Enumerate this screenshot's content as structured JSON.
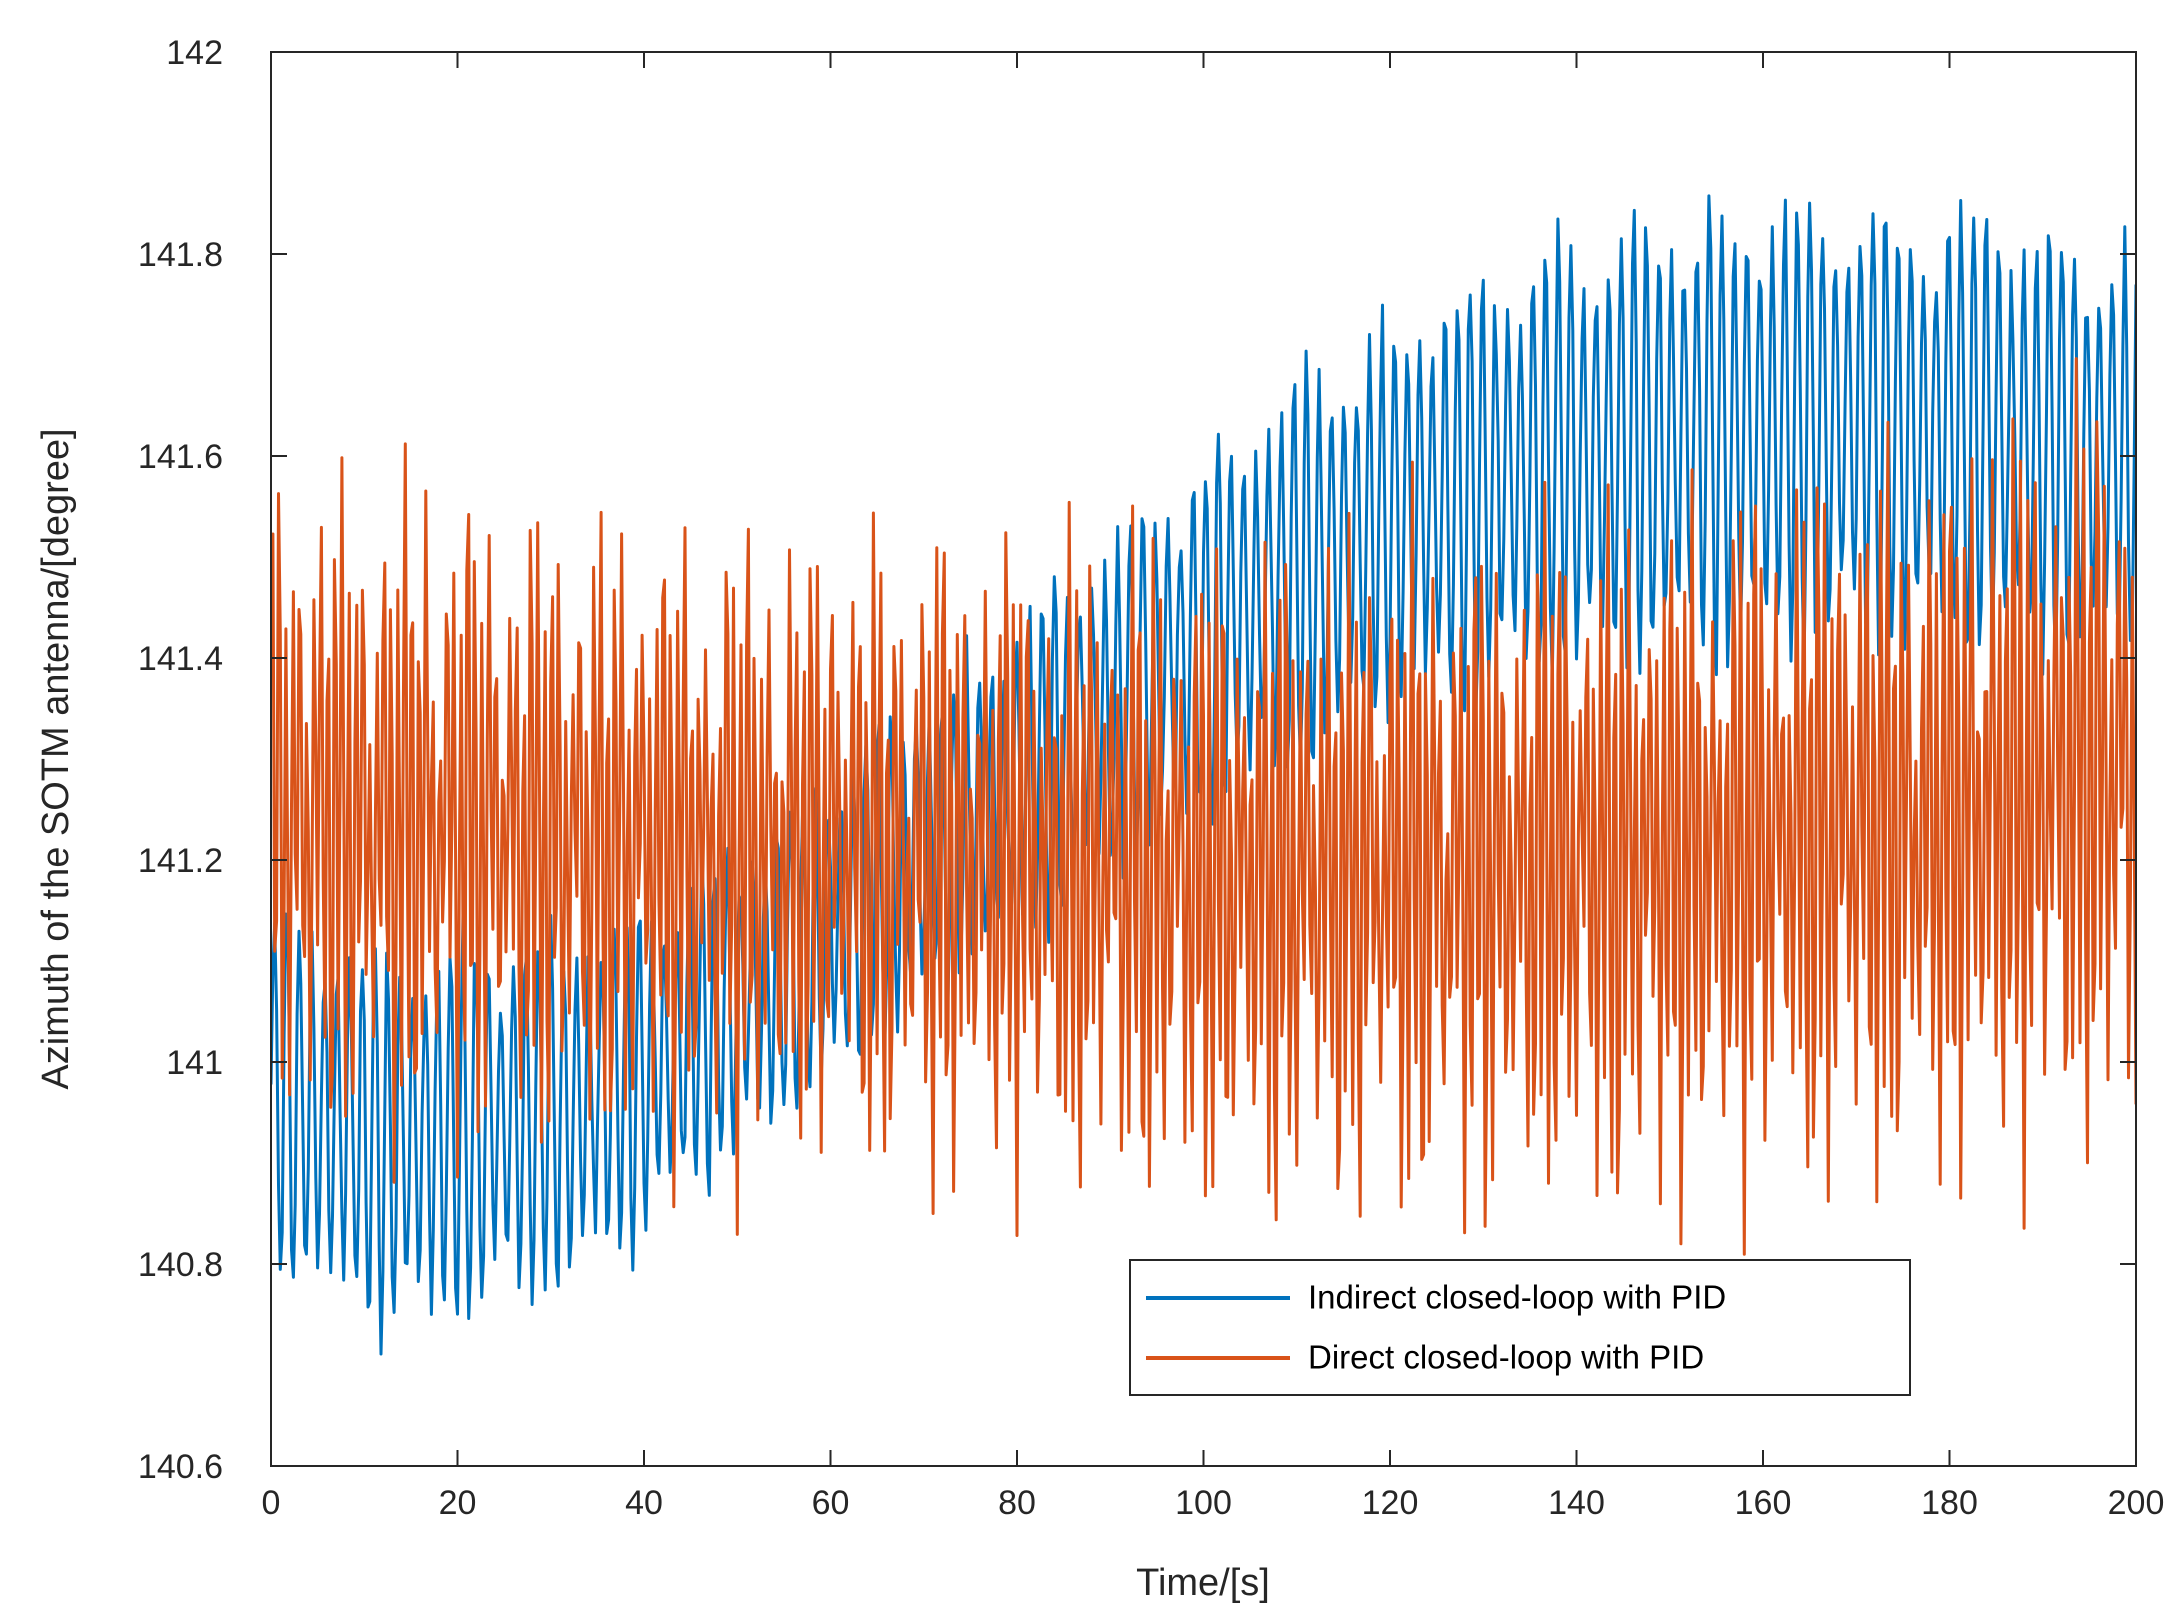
{
  "chart_data": {
    "type": "line",
    "title": "",
    "xlabel": "Time/[s]",
    "ylabel": "Azimuth of the SOTM antenna/[degree]",
    "xlim": [
      0,
      200
    ],
    "ylim": [
      140.6,
      142
    ],
    "xticks": [
      0,
      20,
      40,
      60,
      80,
      100,
      120,
      140,
      160,
      180,
      200
    ],
    "yticks": [
      140.6,
      140.8,
      141,
      141.2,
      141.4,
      141.6,
      141.8,
      142
    ],
    "xtick_labels": [
      "0",
      "20",
      "40",
      "60",
      "80",
      "100",
      "120",
      "140",
      "160",
      "180",
      "200"
    ],
    "ytick_labels": [
      "140.6",
      "140.8",
      "141",
      "141.2",
      "141.4",
      "141.6",
      "141.8",
      "142"
    ],
    "grid": false,
    "legend_position": "bottom-right",
    "sample_step": 0.2,
    "series": [
      {
        "name": "Indirect closed-loop with PID",
        "color": "#0072BD",
        "trend": {
          "t": [
            0,
            5,
            10,
            15,
            20,
            30,
            40,
            50,
            60,
            70,
            80,
            90,
            100,
            110,
            120,
            130,
            140,
            150,
            160,
            170,
            180,
            190,
            200
          ],
          "v": [
            140.97,
            140.95,
            140.93,
            140.925,
            140.93,
            140.95,
            140.99,
            141.06,
            141.13,
            141.21,
            141.28,
            141.35,
            141.42,
            141.48,
            141.53,
            141.57,
            141.6,
            141.62,
            141.63,
            141.63,
            141.625,
            141.61,
            141.6
          ]
        },
        "amplitude": {
          "t": [
            0,
            20,
            50,
            80,
            110,
            150,
            200
          ],
          "v": [
            0.19,
            0.2,
            0.16,
            0.16,
            0.2,
            0.24,
            0.22
          ]
        },
        "period": 1.35
      },
      {
        "name": "Direct closed-loop with PID",
        "color": "#D95319",
        "trend": {
          "t": [
            0,
            20,
            40,
            60,
            80,
            100,
            120,
            140,
            160,
            180,
            200
          ],
          "v": [
            141.25,
            141.24,
            141.22,
            141.21,
            141.2,
            141.19,
            141.19,
            141.2,
            141.22,
            141.25,
            141.3
          ]
        },
        "amplitude": {
          "t": [
            0,
            50,
            100,
            150,
            200
          ],
          "v": [
            0.3,
            0.28,
            0.3,
            0.32,
            0.35
          ]
        },
        "period": 0.75,
        "beat_period": 7.2
      }
    ]
  }
}
